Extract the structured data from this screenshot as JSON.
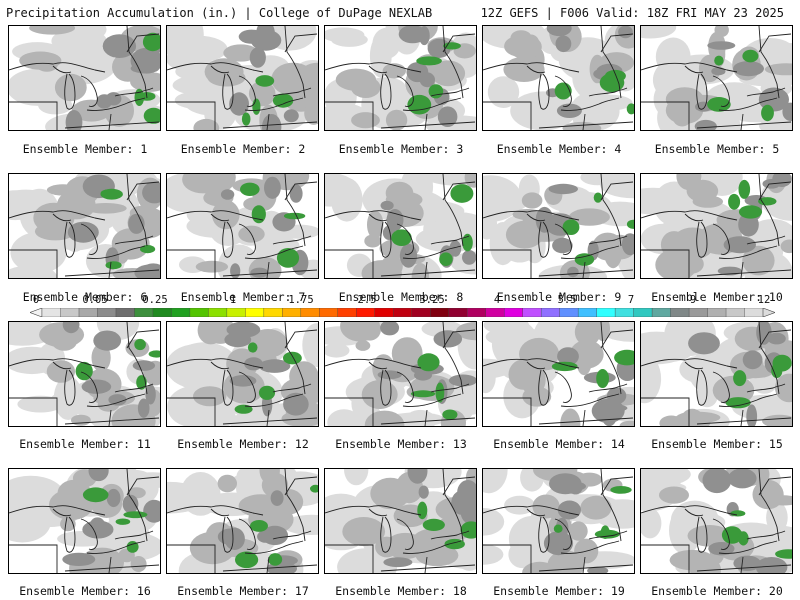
{
  "header": {
    "title_left": "Precipitation Accumulation (in.) | College of DuPage NEXLAB",
    "title_right": "12Z GEFS | F006 Valid: 18Z FRI MAY 23 2025"
  },
  "panel_label_prefix": "Ensemble Member: ",
  "members": [
    1,
    2,
    3,
    4,
    5,
    6,
    7,
    8,
    9,
    10,
    11,
    12,
    13,
    14,
    15,
    16,
    17,
    18,
    19,
    20
  ],
  "colorbar": {
    "tick_labels": [
      "0",
      "0.05",
      "0.25",
      "1",
      "1.75",
      "2.5",
      "3.25",
      "4",
      "5.5",
      "7",
      "9",
      "12"
    ],
    "colors": [
      "#e4e4e4",
      "#c8c8c8",
      "#a8a8a8",
      "#8c8c8c",
      "#6e6e6e",
      "#3d8f3d",
      "#1f8a1f",
      "#20a020",
      "#53c400",
      "#8ce000",
      "#c8f000",
      "#ffff00",
      "#ffd800",
      "#ffb000",
      "#ff8c00",
      "#ff6a00",
      "#ff4000",
      "#ff1a00",
      "#e00000",
      "#c00010",
      "#a00020",
      "#800010",
      "#900030",
      "#b00060",
      "#d000a0",
      "#e000e0",
      "#c050ff",
      "#9070ff",
      "#6090ff",
      "#40c0ff",
      "#30ffff",
      "#40e0e0",
      "#30c8c0",
      "#60a8a0",
      "#808888",
      "#9a9a9a",
      "#b0b0b0",
      "#c8c8c8",
      "#dcdcdc"
    ]
  },
  "map_colors": {
    "light": "#dcdcdc",
    "mid": "#b4b4b4",
    "dark": "#909090",
    "green": "#3a9a3a"
  }
}
